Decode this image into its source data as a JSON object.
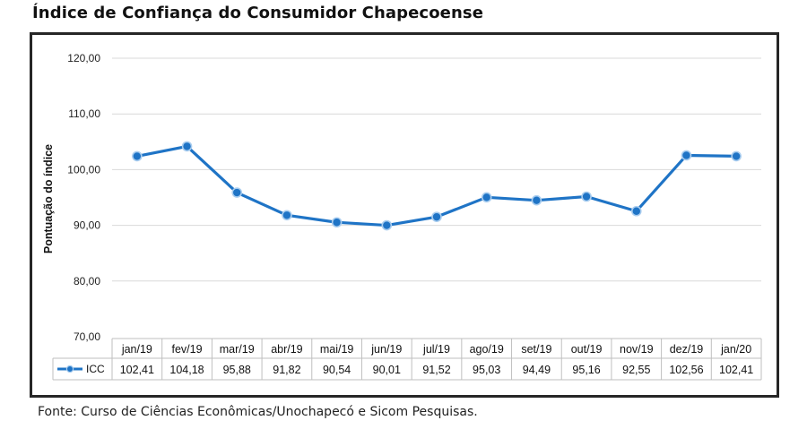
{
  "title": "Índice de Confiança do Consumidor Chapecoense",
  "source": "Fonte: Curso de Ciências Econômicas/Unochapecó e Sicom Pesquisas.",
  "colors": {
    "series": "#1f74c6",
    "grid": "#d9d9d9",
    "frame": "#262626"
  },
  "chart_data": {
    "type": "line",
    "title": "",
    "ylabel": "Pontuação do índice",
    "xlabel": "",
    "ylim": [
      70,
      120
    ],
    "yticks": [
      "70,00",
      "80,00",
      "90,00",
      "100,00",
      "110,00",
      "120,00"
    ],
    "categories": [
      "jan/19",
      "fev/19",
      "mar/19",
      "abr/19",
      "mai/19",
      "jun/19",
      "jul/19",
      "ago/19",
      "set/19",
      "out/19",
      "nov/19",
      "dez/19",
      "jan/20"
    ],
    "series": [
      {
        "name": "ICC",
        "values": [
          102.41,
          104.18,
          95.88,
          91.82,
          90.54,
          90.01,
          91.52,
          95.03,
          94.49,
          95.16,
          92.55,
          102.56,
          102.41
        ],
        "labels": [
          "102,41",
          "104,18",
          "95,88",
          "91,82",
          "90,54",
          "90,01",
          "91,52",
          "95,03",
          "94,49",
          "95,16",
          "92,55",
          "102,56",
          "102,41"
        ]
      }
    ],
    "grid": true,
    "legend": "data-table"
  }
}
